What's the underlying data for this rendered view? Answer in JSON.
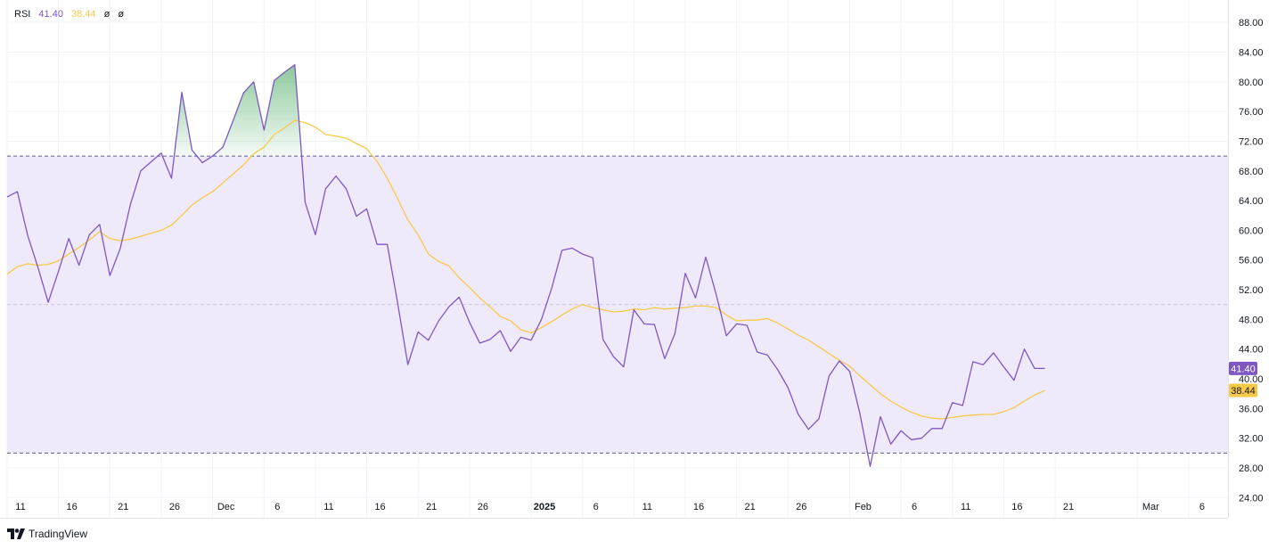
{
  "legend": {
    "indicator": "RSI",
    "rsi_value": "41.40",
    "ma_value": "38.44",
    "extra1": "ø",
    "extra2": "ø"
  },
  "brand": {
    "name": "TradingView"
  },
  "colors": {
    "rsi": "#7e57c2",
    "ma": "#f7c948",
    "band": "#efeafb",
    "overbought_fill": "#2e9d4a",
    "grid": "#f0f3fa"
  },
  "chart_data": {
    "type": "line",
    "ylim": [
      22,
      89
    ],
    "y_ticks": [
      "24.00",
      "28.00",
      "32.00",
      "36.00",
      "40.00",
      "44.00",
      "48.00",
      "52.00",
      "56.00",
      "60.00",
      "64.00",
      "68.00",
      "72.00",
      "76.00",
      "80.00",
      "84.00",
      "88.00"
    ],
    "x_ticks": [
      {
        "label": "11",
        "i": 0
      },
      {
        "label": "16",
        "i": 5
      },
      {
        "label": "21",
        "i": 10
      },
      {
        "label": "26",
        "i": 15
      },
      {
        "label": "Dec",
        "i": 20
      },
      {
        "label": "6",
        "i": 25
      },
      {
        "label": "11",
        "i": 30
      },
      {
        "label": "16",
        "i": 35
      },
      {
        "label": "21",
        "i": 40
      },
      {
        "label": "26",
        "i": 45
      },
      {
        "label": "2025",
        "i": 51,
        "bold": true
      },
      {
        "label": "6",
        "i": 56
      },
      {
        "label": "11",
        "i": 61
      },
      {
        "label": "16",
        "i": 66
      },
      {
        "label": "21",
        "i": 71
      },
      {
        "label": "26",
        "i": 76
      },
      {
        "label": "Feb",
        "i": 82
      },
      {
        "label": "6",
        "i": 87
      },
      {
        "label": "11",
        "i": 92
      },
      {
        "label": "16",
        "i": 97
      },
      {
        "label": "21",
        "i": 102
      },
      {
        "label": "Mar",
        "i": 110
      },
      {
        "label": "6",
        "i": 115
      }
    ],
    "levels": {
      "upper": 70,
      "middle": 50,
      "lower": 30
    },
    "series": [
      {
        "name": "RSI",
        "values": [
          64.5,
          65.2,
          59.3,
          55,
          50.3,
          54.5,
          58.9,
          55.3,
          59.4,
          60.8,
          53.9,
          57.5,
          63.5,
          68.0,
          69.2,
          70.4,
          67.0,
          78.6,
          70.8,
          69.1,
          70.0,
          71.2,
          74.8,
          78.5,
          80.0,
          73.5,
          80.2,
          81.3,
          82.3,
          63.8,
          59.4,
          65.6,
          67.3,
          65.6,
          61.9,
          62.9,
          58.1,
          58.1,
          50.3,
          41.9,
          46.3,
          45.2,
          47.8,
          49.7,
          51.0,
          47.6,
          44.8,
          45.3,
          46.5,
          43.7,
          45.6,
          45.2,
          48.0,
          52.2,
          57.3,
          57.6,
          56.8,
          56.3,
          45.3,
          43.0,
          41.6,
          49.3,
          47.4,
          47.3,
          42.7,
          46.1,
          54.2,
          50.9,
          56.4,
          51.4,
          45.8,
          47.4,
          47.2,
          43.6,
          43.2,
          41.2,
          38.8,
          35.2,
          33.2,
          34.6,
          40.4,
          42.4,
          41.0,
          35.3,
          28.2,
          34.9,
          31.2,
          33.0,
          31.8,
          32.0,
          33.3,
          33.3,
          36.8,
          36.4,
          42.3,
          41.9,
          43.5,
          41.6,
          39.8,
          44.0,
          41.4,
          41.4
        ],
        "highlight_overbought": true
      },
      {
        "name": "RSI-based MA",
        "values": [
          54.1,
          55.1,
          55.5,
          55.3,
          55.4,
          55.9,
          56.8,
          57.7,
          58.7,
          59.8,
          58.9,
          58.6,
          58.8,
          59.2,
          59.6,
          60.0,
          60.7,
          62.0,
          63.4,
          64.4,
          65.2,
          66.4,
          67.6,
          68.8,
          70.3,
          71.2,
          72.9,
          73.8,
          74.8,
          74.5,
          73.9,
          72.9,
          72.7,
          72.4,
          71.7,
          71.0,
          69.3,
          67.0,
          64.3,
          61.4,
          59.4,
          56.8,
          55.8,
          55.2,
          53.6,
          52.3,
          50.9,
          49.7,
          48.4,
          47.8,
          46.6,
          46.2,
          46.9,
          47.7,
          48.6,
          49.4,
          50.0,
          49.6,
          49.3,
          49.0,
          49.1,
          49.4,
          49.3,
          49.6,
          49.4,
          49.5,
          49.6,
          49.8,
          49.8,
          49.6,
          48.6,
          47.8,
          47.9,
          47.9,
          48.1,
          47.5,
          46.7,
          45.9,
          45.2,
          44.3,
          43.4,
          42.5,
          41.7,
          40.4,
          39.2,
          38.0,
          37.0,
          36.2,
          35.5,
          35.0,
          34.7,
          34.6,
          34.8,
          35.0,
          35.1,
          35.2,
          35.2,
          35.6,
          36.1,
          37.0,
          37.8,
          38.44
        ]
      }
    ],
    "value_labels": [
      {
        "series": "RSI",
        "text": "41.40"
      },
      {
        "series": "RSI-based MA",
        "text": "38.44"
      }
    ]
  }
}
